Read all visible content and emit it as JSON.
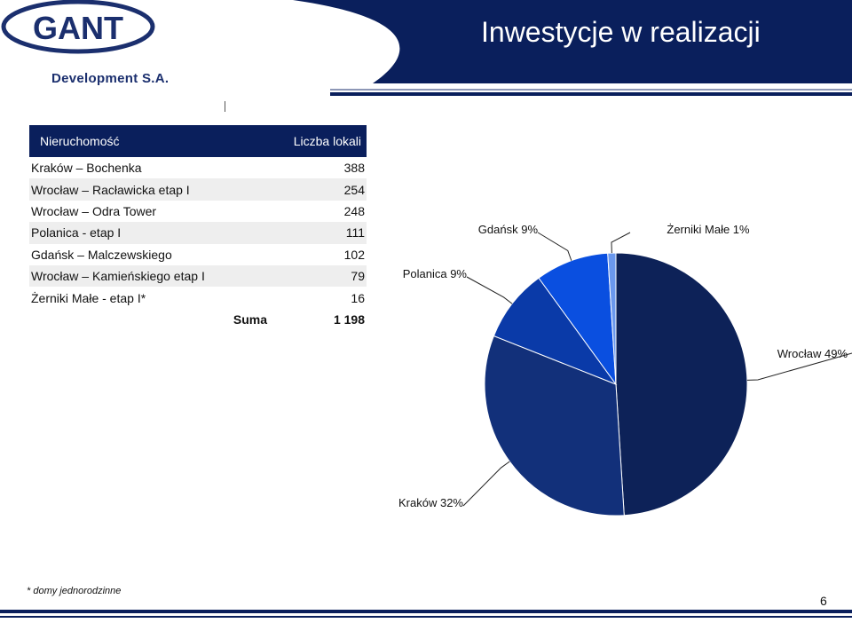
{
  "header": {
    "title": "Inwestycje w realizacji",
    "logo_main": "GANT",
    "logo_sub": "Development S.A."
  },
  "table": {
    "col_property": "Nieruchomość",
    "col_units": "Liczba lokali",
    "rows": [
      {
        "name": "Kraków – Bochenka",
        "units": "388"
      },
      {
        "name": "Wrocław – Racławicka etap I",
        "units": "254"
      },
      {
        "name": "Wrocław – Odra Tower",
        "units": "248"
      },
      {
        "name": "Polanica - etap I",
        "units": "111"
      },
      {
        "name": "Gdańsk – Malczewskiego",
        "units": "102"
      },
      {
        "name": "Wrocław – Kamieńskiego etap I",
        "units": "79"
      },
      {
        "name": "Żerniki Małe - etap I*",
        "units": "16"
      }
    ],
    "sum_label": "Suma",
    "sum_value": "1 198"
  },
  "chart_data": {
    "type": "pie",
    "slices": [
      {
        "label": "Wrocław 49%",
        "value": 49,
        "color": "#0d2258"
      },
      {
        "label": "Kraków 32%",
        "value": 32,
        "color": "#12307a"
      },
      {
        "label": "Polanica 9%",
        "value": 9,
        "color": "#0a3aa8"
      },
      {
        "label": "Gdańsk 9%",
        "value": 9,
        "color": "#0a4fe0"
      },
      {
        "label": "Żerniki Małe 1%",
        "value": 1,
        "color": "#6a98ee"
      }
    ]
  },
  "footer": {
    "footnote": "* domy jednorodzinne",
    "page_number": "6"
  },
  "colors": {
    "brand_navy": "#0a1f5c"
  }
}
